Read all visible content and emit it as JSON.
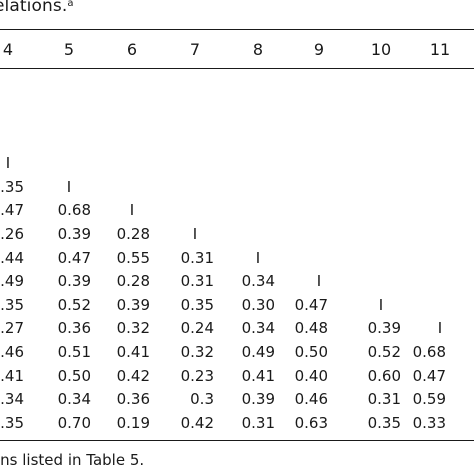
{
  "caption": {
    "text": "elations.",
    "superscript": "a"
  },
  "table": {
    "column_headers": [
      "4",
      "5",
      "6",
      "7",
      "8",
      "9",
      "10",
      "11"
    ],
    "rows": [
      [
        "I"
      ],
      [
        ".35",
        "I"
      ],
      [
        ".47",
        "0.68",
        "I"
      ],
      [
        ".26",
        "0.39",
        "0.28",
        "I"
      ],
      [
        ".44",
        "0.47",
        "0.55",
        "0.31",
        "I"
      ],
      [
        ".49",
        "0.39",
        "0.28",
        "0.31",
        "0.34",
        "I"
      ],
      [
        ".35",
        "0.52",
        "0.39",
        "0.35",
        "0.30",
        "0.47",
        "I"
      ],
      [
        ".27",
        "0.36",
        "0.32",
        "0.24",
        "0.34",
        "0.48",
        "0.39",
        "I"
      ],
      [
        ".46",
        "0.51",
        "0.41",
        "0.32",
        "0.49",
        "0.50",
        "0.52",
        "0.68"
      ],
      [
        ".41",
        "0.50",
        "0.42",
        "0.23",
        "0.41",
        "0.40",
        "0.60",
        "0.47"
      ],
      [
        ".34",
        "0.34",
        "0.36",
        "0.3",
        "0.39",
        "0.46",
        "0.31",
        "0.59"
      ],
      [
        ".35",
        "0.70",
        "0.19",
        "0.42",
        "0.31",
        "0.63",
        "0.35",
        "0.33"
      ]
    ]
  },
  "footnote": "ons listed in Table 5."
}
